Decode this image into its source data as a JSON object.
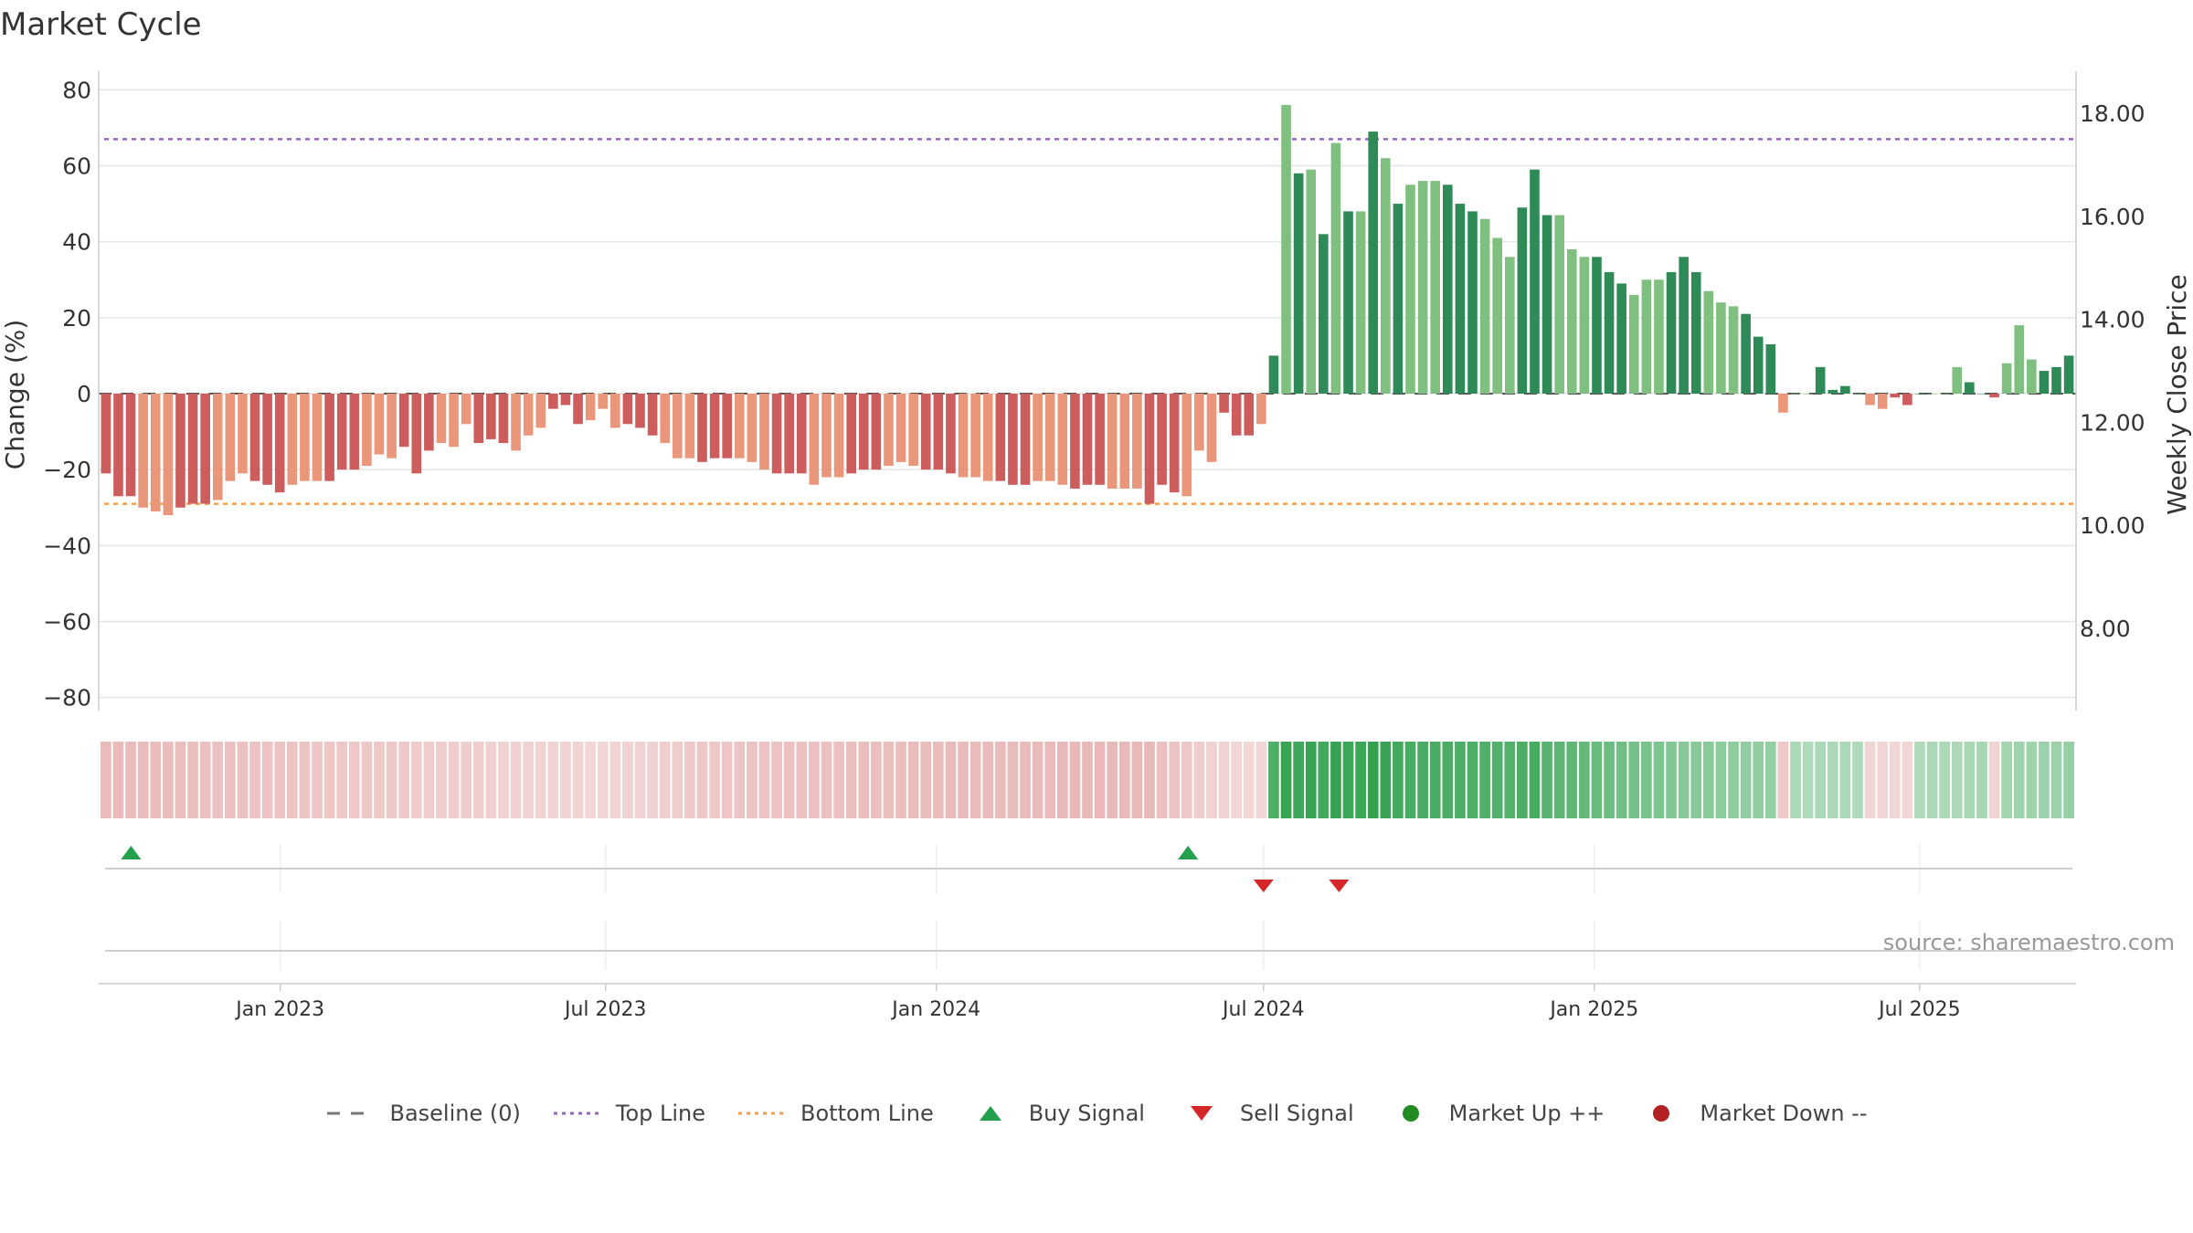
{
  "source_text": "source: sharemaestro.com",
  "colors": {
    "strong_green": "#2e8b57",
    "light_green": "#7fbf7f",
    "strong_red": "#cd5c5c",
    "light_red": "#e9967a",
    "top_line": "#9467bd",
    "bottom_line": "#f0a050",
    "buy": "#22a04b",
    "sell": "#d62728",
    "market_up": "#228b22",
    "market_down": "#b22222"
  },
  "legend": [
    {
      "key": "baseline",
      "label": "Baseline (0)",
      "symbol": "dash",
      "color": "#777777"
    },
    {
      "key": "top",
      "label": "Top Line",
      "symbol": "dot-line",
      "color": "#9467bd"
    },
    {
      "key": "bottom",
      "label": "Bottom Line",
      "symbol": "dot-line",
      "color": "#f0a050"
    },
    {
      "key": "buy",
      "label": "Buy Signal",
      "symbol": "triangle-up",
      "color": "#22a04b"
    },
    {
      "key": "sell",
      "label": "Sell Signal",
      "symbol": "triangle-down",
      "color": "#d62728"
    },
    {
      "key": "up",
      "label": "Market Up ++",
      "symbol": "circle",
      "color": "#228b22"
    },
    {
      "key": "down",
      "label": "Market Down --",
      "symbol": "circle",
      "color": "#b22222"
    }
  ],
  "chart_data": {
    "type": "bar",
    "title": "Market Cycle",
    "ylabel": "Change (%)",
    "y2label": "Weekly Close Price",
    "ylim": [
      -82,
      82
    ],
    "yticks": [
      80,
      60,
      40,
      20,
      0,
      -20,
      -40,
      -60,
      -80
    ],
    "y2ticks": [
      "18.00",
      "16.00",
      "14.00",
      "12.00",
      "10.00",
      "8.00"
    ],
    "x_start": "2022-09-26",
    "x_end": "2025-09-22",
    "x_range": [
      "2022-09-22",
      "2025-09-26"
    ],
    "xticks": [
      {
        "date": "2023-01-01",
        "label": "Jan 2023"
      },
      {
        "date": "2023-07-01",
        "label": "Jul 2023"
      },
      {
        "date": "2024-01-01",
        "label": "Jan 2024"
      },
      {
        "date": "2024-07-01",
        "label": "Jul 2024"
      },
      {
        "date": "2025-01-01",
        "label": "Jan 2025"
      },
      {
        "date": "2025-07-01",
        "label": "Jul 2025"
      }
    ],
    "top_line": 67,
    "bottom_line": -29,
    "grid": true,
    "legend_position": "bottom",
    "values": [
      -21,
      -27,
      -27,
      -30,
      -31,
      -32,
      -30,
      -29,
      -29,
      -28,
      -23,
      -21,
      -23,
      -24,
      -26,
      -24,
      -23,
      -23,
      -23,
      -20,
      -20,
      -19,
      -16,
      -17,
      -14,
      -21,
      -15,
      -13,
      -14,
      -8,
      -13,
      -12,
      -13,
      -15,
      -11,
      -9,
      -4,
      -3,
      -8,
      -7,
      -4,
      -9,
      -8,
      -9,
      -11,
      -13,
      -17,
      -17,
      -18,
      -17,
      -17,
      -17,
      -18,
      -20,
      -21,
      -21,
      -21,
      -24,
      -22,
      -22,
      -21,
      -20,
      -20,
      -19,
      -18,
      -19,
      -20,
      -20,
      -21,
      -22,
      -22,
      -23,
      -23,
      -24,
      -24,
      -23,
      -23,
      -24,
      -25,
      -24,
      -24,
      -25,
      -25,
      -25,
      -29,
      -24,
      -26,
      -27,
      -15,
      -18,
      -5,
      -11,
      -11,
      -8,
      10,
      76,
      58,
      59,
      42,
      66,
      48,
      48,
      69,
      62,
      50,
      55,
      56,
      56,
      55,
      50,
      48,
      46,
      41,
      36,
      49,
      59,
      47,
      47,
      38,
      36,
      36,
      32,
      29,
      26,
      30,
      30,
      32,
      36,
      32,
      27,
      24,
      23,
      21,
      15,
      13,
      -5,
      0,
      0,
      7,
      1,
      2,
      0,
      -3,
      -4,
      -1,
      -3,
      0,
      0,
      0,
      7,
      3,
      0,
      -1,
      8,
      18,
      9,
      6,
      7,
      10
    ],
    "intensity": [
      0.65,
      0.64,
      0.64,
      0.63,
      0.63,
      0.62,
      0.61,
      0.61,
      0.6,
      0.59,
      0.59,
      0.58,
      0.57,
      0.57,
      0.56,
      0.56,
      0.55,
      0.54,
      0.54,
      0.53,
      0.52,
      0.52,
      0.51,
      0.5,
      0.5,
      0.49,
      0.48,
      0.48,
      0.47,
      0.47,
      0.46,
      0.45,
      0.45,
      0.44,
      0.43,
      0.43,
      0.42,
      0.42,
      0.41,
      0.4,
      0.4,
      0.41,
      0.42,
      0.43,
      0.44,
      0.46,
      0.48,
      0.5,
      0.52,
      0.53,
      0.54,
      0.55,
      0.56,
      0.57,
      0.58,
      0.58,
      0.59,
      0.6,
      0.6,
      0.6,
      0.61,
      0.61,
      0.62,
      0.62,
      0.62,
      0.63,
      0.63,
      0.63,
      0.64,
      0.64,
      0.64,
      0.64,
      0.65,
      0.65,
      0.65,
      0.65,
      0.65,
      0.66,
      0.66,
      0.66,
      0.66,
      0.66,
      0.66,
      0.66,
      0.66,
      0.6,
      0.55,
      0.52,
      0.48,
      0.45,
      0.42,
      0.4,
      0.39,
      0.38,
      0.85,
      0.95,
      0.92,
      0.96,
      0.9,
      0.97,
      0.93,
      0.94,
      0.98,
      0.95,
      0.9,
      0.88,
      0.88,
      0.88,
      0.87,
      0.86,
      0.85,
      0.84,
      0.83,
      0.82,
      0.85,
      0.88,
      0.8,
      0.78,
      0.76,
      0.74,
      0.72,
      0.7,
      0.68,
      0.66,
      0.64,
      0.62,
      0.6,
      0.58,
      0.57,
      0.56,
      0.55,
      0.54,
      0.53,
      0.52,
      0.51,
      0.5,
      0.4,
      0.38,
      0.4,
      0.4,
      0.4,
      0.38,
      0.38,
      0.38,
      0.38,
      0.38,
      0.38,
      0.4,
      0.4,
      0.4,
      0.42,
      0.42,
      0.42,
      0.44,
      0.46,
      0.46,
      0.48,
      0.48,
      0.5
    ],
    "buy_signals": [
      "2022-10-10",
      "2024-05-20"
    ],
    "sell_signals": [
      "2024-07-01",
      "2024-08-12"
    ]
  }
}
